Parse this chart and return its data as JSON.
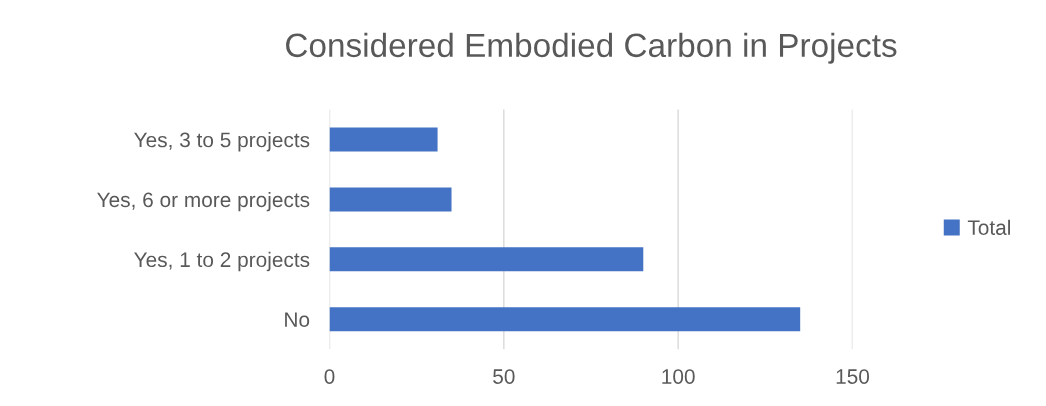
{
  "chart_data": {
    "type": "bar",
    "orientation": "horizontal",
    "title": "Considered Embodied Carbon in Projects",
    "categories": [
      "Yes, 3 to 5 projects",
      "Yes, 6 or more projects",
      "Yes, 1 to 2 projects",
      "No"
    ],
    "series": [
      {
        "name": "Total",
        "color": "#4472c4",
        "values": [
          31,
          35,
          90,
          135
        ]
      }
    ],
    "xlim": [
      0,
      150
    ],
    "xticks": [
      0,
      50,
      100,
      150
    ],
    "grid": "x",
    "legend": "right"
  }
}
